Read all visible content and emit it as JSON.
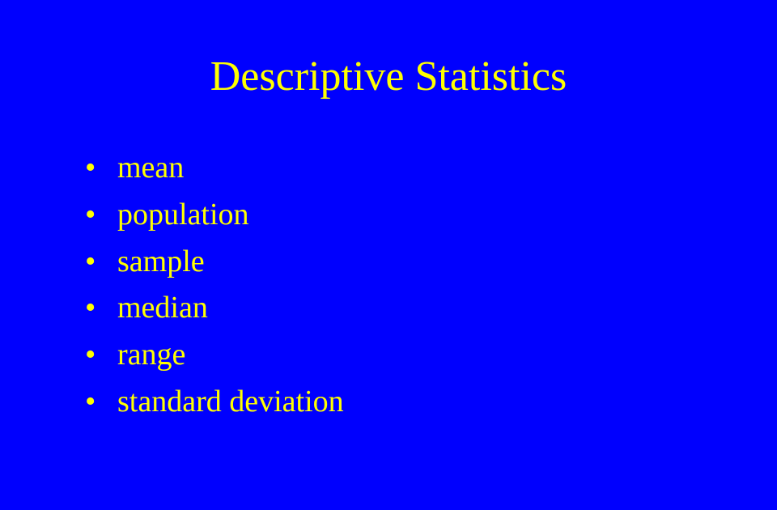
{
  "slide": {
    "title": "Descriptive Statistics",
    "bullets": [
      "mean",
      "population",
      "sample",
      "median",
      "range",
      "standard deviation"
    ],
    "styling": {
      "background_color": "#0000fe",
      "title_color": "#ffff00",
      "title_fontsize": 52,
      "bullet_color": "#ffff00",
      "bullet_fontsize": 38,
      "font_family": "Times New Roman"
    }
  }
}
